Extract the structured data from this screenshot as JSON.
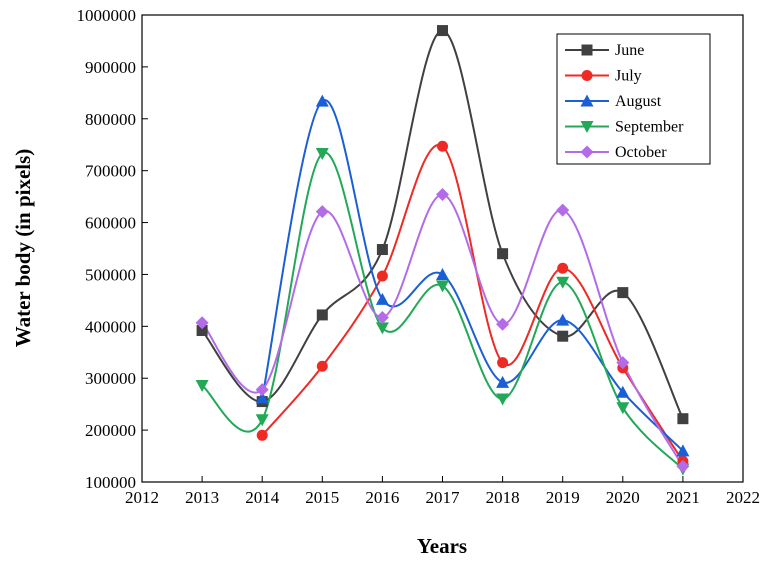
{
  "chart_data": {
    "type": "line",
    "title": "",
    "xlabel": "Years",
    "ylabel": "Water body (in pixels)",
    "xlim": [
      2012,
      2022
    ],
    "ylim": [
      100000,
      1000000
    ],
    "x_ticks": [
      "2012",
      "2013",
      "2014",
      "2015",
      "2016",
      "2017",
      "2018",
      "2019",
      "2020",
      "2021",
      "2022"
    ],
    "y_ticks": [
      "100000",
      "200000",
      "300000",
      "400000",
      "500000",
      "600000",
      "700000",
      "800000",
      "900000",
      "1000000"
    ],
    "grid": false,
    "legend_position": "top-right",
    "x": [
      2013,
      2014,
      2015,
      2016,
      2017,
      2018,
      2019,
      2020,
      2021
    ],
    "series": [
      {
        "name": "June",
        "color": "#404040",
        "marker": "square",
        "values": [
          392000,
          255000,
          422000,
          548000,
          970000,
          540000,
          381000,
          465000,
          222000
        ]
      },
      {
        "name": "July",
        "color": "#ee2a24",
        "marker": "circle",
        "values": [
          null,
          190000,
          323000,
          497000,
          747000,
          330000,
          512000,
          320000,
          140000
        ]
      },
      {
        "name": "August",
        "color": "#1a5fd6",
        "marker": "triangle-up",
        "values": [
          null,
          262000,
          834000,
          452000,
          500000,
          292000,
          412000,
          273000,
          160000
        ]
      },
      {
        "name": "September",
        "color": "#22a857",
        "marker": "triangle-down",
        "values": [
          286000,
          220000,
          733000,
          397000,
          478000,
          260000,
          485000,
          243000,
          125000
        ]
      },
      {
        "name": "October",
        "color": "#b36be8",
        "marker": "diamond",
        "values": [
          407000,
          278000,
          621000,
          417000,
          654000,
          404000,
          624000,
          330000,
          130000
        ]
      }
    ]
  }
}
